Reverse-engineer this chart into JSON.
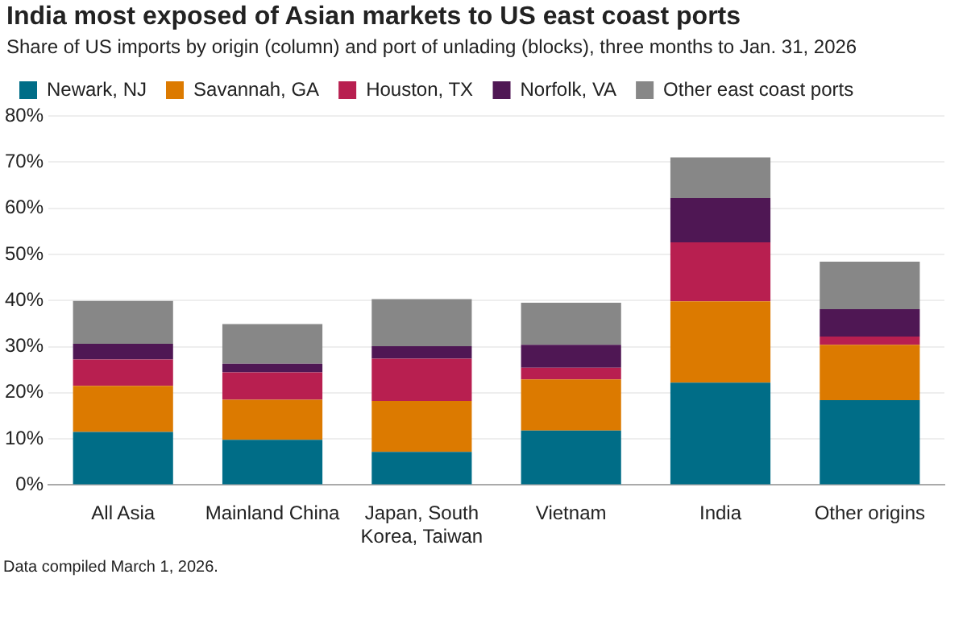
{
  "chart_data": {
    "type": "bar",
    "title": "India most exposed of Asian markets to US east coast ports",
    "subtitle": "Share of US imports by origin (column) and port of unlading (blocks), three months to Jan. 31, 2026",
    "categories": [
      "All Asia",
      "Mainland China",
      "Japan, South Korea, Taiwan",
      "Vietnam",
      "India",
      "Other origins"
    ],
    "series": [
      {
        "name": "Newark, NJ",
        "color": "#006d87",
        "values": [
          11.5,
          9.8,
          7.2,
          11.8,
          22.2,
          18.4
        ]
      },
      {
        "name": "Savannah, GA",
        "color": "#dc7a00",
        "values": [
          10.0,
          8.7,
          11.0,
          11.1,
          17.6,
          12.0
        ]
      },
      {
        "name": "Houston, TX",
        "color": "#b81f50",
        "values": [
          5.7,
          5.9,
          9.2,
          2.5,
          12.8,
          1.8
        ]
      },
      {
        "name": "Norfolk, VA",
        "color": "#4f1754",
        "values": [
          3.4,
          1.9,
          2.7,
          5.0,
          9.6,
          5.9
        ]
      },
      {
        "name": "Other east coast ports",
        "color": "#878787",
        "values": [
          9.3,
          8.6,
          10.2,
          9.1,
          8.8,
          10.3
        ]
      }
    ],
    "stacked": true,
    "ylim": [
      0,
      80
    ],
    "yticks": [
      {
        "value": 0,
        "label": "0%"
      },
      {
        "value": 10,
        "label": "10%"
      },
      {
        "value": 20,
        "label": "20%"
      },
      {
        "value": 30,
        "label": "30%"
      },
      {
        "value": 40,
        "label": "40%"
      },
      {
        "value": 50,
        "label": "50%"
      },
      {
        "value": 60,
        "label": "60%"
      },
      {
        "value": 70,
        "label": "70%"
      },
      {
        "value": 80,
        "label": "80%"
      }
    ],
    "grid": "y",
    "legend": "top left",
    "annotations": [
      "Data compiled March 1, 2026."
    ]
  }
}
